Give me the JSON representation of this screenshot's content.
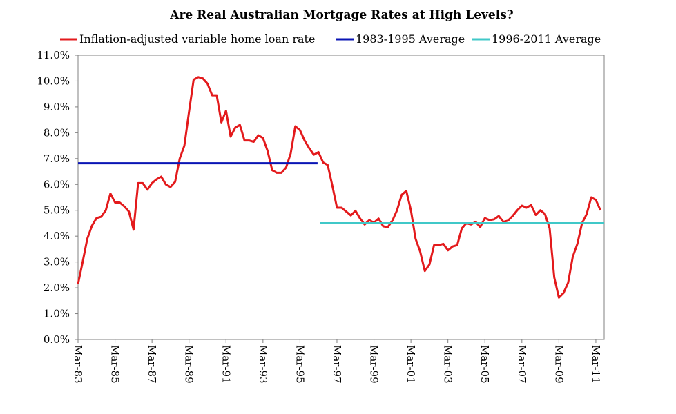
{
  "chart_data": {
    "type": "line",
    "title": "Are Real Australian Mortgage Rates at High Levels?",
    "xlabel": "",
    "ylabel": "",
    "ylim": [
      0,
      11
    ],
    "yticks": [
      "0.0%",
      "1.0%",
      "2.0%",
      "3.0%",
      "4.0%",
      "5.0%",
      "6.0%",
      "7.0%",
      "8.0%",
      "9.0%",
      "10.0%",
      "11.0%"
    ],
    "xticks": [
      "Mar-83",
      "Mar-85",
      "Mar-87",
      "Mar-89",
      "Mar-91",
      "Mar-93",
      "Mar-95",
      "Mar-97",
      "Mar-99",
      "Mar-01",
      "Mar-03",
      "Mar-05",
      "Mar-07",
      "Mar-09",
      "Mar-11"
    ],
    "xlim": [
      1983.0,
      2011.45
    ],
    "legend_position": "top",
    "series": [
      {
        "name": "Inflation-adjusted variable home loan rate",
        "color": "#e31a1c",
        "points": [
          [
            1983.0,
            2.15
          ],
          [
            1983.25,
            3.0
          ],
          [
            1983.5,
            3.9
          ],
          [
            1983.75,
            4.4
          ],
          [
            1984.0,
            4.7
          ],
          [
            1984.25,
            4.75
          ],
          [
            1984.5,
            5.0
          ],
          [
            1984.75,
            5.65
          ],
          [
            1985.0,
            5.3
          ],
          [
            1985.25,
            5.3
          ],
          [
            1985.5,
            5.15
          ],
          [
            1985.75,
            4.95
          ],
          [
            1986.0,
            4.25
          ],
          [
            1986.25,
            6.05
          ],
          [
            1986.5,
            6.05
          ],
          [
            1986.75,
            5.8
          ],
          [
            1987.0,
            6.05
          ],
          [
            1987.25,
            6.2
          ],
          [
            1987.5,
            6.3
          ],
          [
            1987.75,
            6.0
          ],
          [
            1988.0,
            5.9
          ],
          [
            1988.25,
            6.1
          ],
          [
            1988.5,
            7.0
          ],
          [
            1988.75,
            7.5
          ],
          [
            1989.0,
            8.8
          ],
          [
            1989.25,
            10.05
          ],
          [
            1989.5,
            10.15
          ],
          [
            1989.75,
            10.1
          ],
          [
            1990.0,
            9.9
          ],
          [
            1990.25,
            9.45
          ],
          [
            1990.5,
            9.45
          ],
          [
            1990.75,
            8.4
          ],
          [
            1991.0,
            8.85
          ],
          [
            1991.25,
            7.85
          ],
          [
            1991.5,
            8.2
          ],
          [
            1991.75,
            8.3
          ],
          [
            1992.0,
            7.7
          ],
          [
            1992.25,
            7.7
          ],
          [
            1992.5,
            7.65
          ],
          [
            1992.75,
            7.9
          ],
          [
            1993.0,
            7.8
          ],
          [
            1993.25,
            7.3
          ],
          [
            1993.5,
            6.55
          ],
          [
            1993.75,
            6.45
          ],
          [
            1994.0,
            6.45
          ],
          [
            1994.25,
            6.65
          ],
          [
            1994.5,
            7.2
          ],
          [
            1994.75,
            8.25
          ],
          [
            1995.0,
            8.1
          ],
          [
            1995.25,
            7.7
          ],
          [
            1995.5,
            7.4
          ],
          [
            1995.75,
            7.15
          ],
          [
            1996.0,
            7.25
          ],
          [
            1996.25,
            6.85
          ],
          [
            1996.5,
            6.75
          ],
          [
            1996.75,
            5.95
          ],
          [
            1997.0,
            5.1
          ],
          [
            1997.25,
            5.1
          ],
          [
            1997.5,
            4.95
          ],
          [
            1997.75,
            4.8
          ],
          [
            1998.0,
            4.98
          ],
          [
            1998.25,
            4.68
          ],
          [
            1998.5,
            4.45
          ],
          [
            1998.75,
            4.62
          ],
          [
            1999.0,
            4.52
          ],
          [
            1999.25,
            4.68
          ],
          [
            1999.5,
            4.38
          ],
          [
            1999.75,
            4.35
          ],
          [
            2000.0,
            4.6
          ],
          [
            2000.25,
            5.0
          ],
          [
            2000.5,
            5.6
          ],
          [
            2000.75,
            5.75
          ],
          [
            2001.0,
            5.0
          ],
          [
            2001.25,
            3.9
          ],
          [
            2001.5,
            3.4
          ],
          [
            2001.75,
            2.65
          ],
          [
            2002.0,
            2.9
          ],
          [
            2002.25,
            3.65
          ],
          [
            2002.5,
            3.65
          ],
          [
            2002.75,
            3.7
          ],
          [
            2003.0,
            3.45
          ],
          [
            2003.25,
            3.6
          ],
          [
            2003.5,
            3.65
          ],
          [
            2003.75,
            4.3
          ],
          [
            2004.0,
            4.5
          ],
          [
            2004.25,
            4.45
          ],
          [
            2004.5,
            4.55
          ],
          [
            2004.75,
            4.35
          ],
          [
            2005.0,
            4.7
          ],
          [
            2005.25,
            4.62
          ],
          [
            2005.5,
            4.65
          ],
          [
            2005.75,
            4.78
          ],
          [
            2006.0,
            4.55
          ],
          [
            2006.25,
            4.6
          ],
          [
            2006.5,
            4.78
          ],
          [
            2006.75,
            5.0
          ],
          [
            2007.0,
            5.18
          ],
          [
            2007.25,
            5.1
          ],
          [
            2007.5,
            5.2
          ],
          [
            2007.75,
            4.82
          ],
          [
            2008.0,
            5.0
          ],
          [
            2008.25,
            4.85
          ],
          [
            2008.5,
            4.3
          ],
          [
            2008.75,
            2.4
          ],
          [
            2009.0,
            1.62
          ],
          [
            2009.25,
            1.8
          ],
          [
            2009.5,
            2.2
          ],
          [
            2009.75,
            3.2
          ],
          [
            2010.0,
            3.7
          ],
          [
            2010.25,
            4.5
          ],
          [
            2010.5,
            4.85
          ],
          [
            2010.75,
            5.5
          ],
          [
            2011.0,
            5.4
          ],
          [
            2011.25,
            5.0
          ]
        ]
      },
      {
        "name": "1983-1995 Average",
        "color": "#0a14b4",
        "points": [
          [
            1983.0,
            6.82
          ],
          [
            1995.95,
            6.82
          ]
        ]
      },
      {
        "name": "1996-2011 Average",
        "color": "#40c8c8",
        "points": [
          [
            1996.1,
            4.5
          ],
          [
            2011.45,
            4.5
          ]
        ]
      }
    ]
  }
}
